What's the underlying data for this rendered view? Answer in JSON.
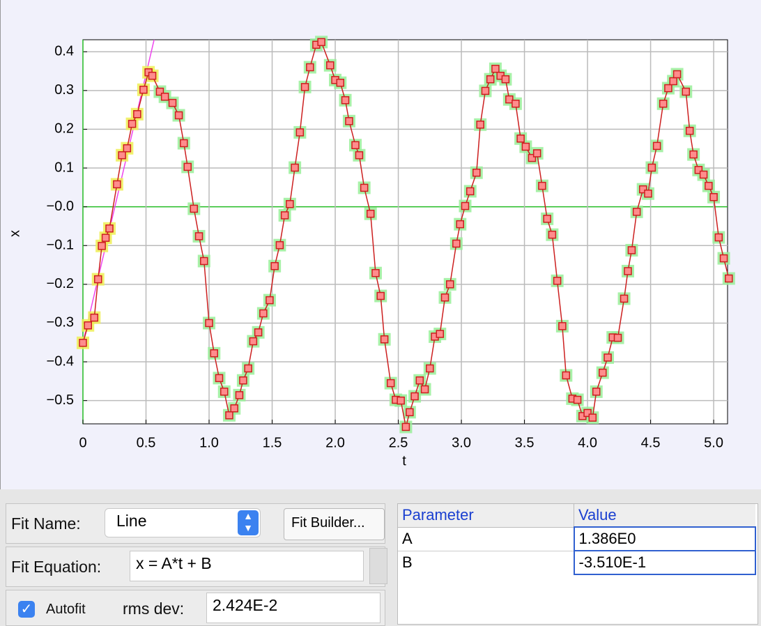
{
  "chart_data": {
    "type": "line",
    "x_label": "t",
    "y_label": "x",
    "x": [
      0,
      0.04,
      0.09,
      0.12,
      0.15,
      0.18,
      0.21,
      0.27,
      0.31,
      0.35,
      0.39,
      0.43,
      0.48,
      0.52,
      0.55,
      0.61,
      0.65,
      0.71,
      0.76,
      0.8,
      0.83,
      0.88,
      0.92,
      0.96,
      1.0,
      1.04,
      1.08,
      1.12,
      1.16,
      1.2,
      1.24,
      1.27,
      1.31,
      1.35,
      1.39,
      1.43,
      1.48,
      1.52,
      1.56,
      1.6,
      1.64,
      1.68,
      1.72,
      1.76,
      1.8,
      1.85,
      1.89,
      1.96,
      2.0,
      2.04,
      2.08,
      2.11,
      2.16,
      2.19,
      2.23,
      2.28,
      2.32,
      2.36,
      2.39,
      2.44,
      2.48,
      2.52,
      2.56,
      2.59,
      2.63,
      2.67,
      2.71,
      2.75,
      2.79,
      2.83,
      2.87,
      2.91,
      2.96,
      2.99,
      3.03,
      3.07,
      3.12,
      3.15,
      3.19,
      3.23,
      3.27,
      3.31,
      3.35,
      3.38,
      3.43,
      3.47,
      3.51,
      3.56,
      3.6,
      3.64,
      3.68,
      3.72,
      3.76,
      3.8,
      3.83,
      3.88,
      3.92,
      3.96,
      4.0,
      4.04,
      4.07,
      4.12,
      4.16,
      4.2,
      4.24,
      4.29,
      4.32,
      4.35,
      4.39,
      4.44,
      4.48,
      4.51,
      4.55,
      4.6,
      4.64,
      4.68,
      4.71,
      4.78,
      4.81,
      4.84,
      4.88,
      4.92,
      4.96,
      5.0,
      5.04,
      5.08,
      5.12
    ],
    "series": [
      {
        "color": "#cc1f1f",
        "values": [
          -0.351,
          -0.306,
          -0.286,
          -0.187,
          -0.101,
          -0.08,
          -0.056,
          0.058,
          0.133,
          0.151,
          0.214,
          0.239,
          0.302,
          0.347,
          0.338,
          0.297,
          0.284,
          0.268,
          0.236,
          0.164,
          0.103,
          -0.005,
          -0.076,
          -0.14,
          -0.3,
          -0.378,
          -0.442,
          -0.477,
          -0.538,
          -0.52,
          -0.486,
          -0.448,
          -0.417,
          -0.347,
          -0.324,
          -0.275,
          -0.241,
          -0.153,
          -0.099,
          -0.022,
          0.007,
          0.101,
          0.192,
          0.309,
          0.36,
          0.418,
          0.425,
          0.365,
          0.327,
          0.32,
          0.275,
          0.221,
          0.159,
          0.133,
          0.049,
          -0.018,
          -0.171,
          -0.23,
          -0.342,
          -0.455,
          -0.498,
          -0.5,
          -0.568,
          -0.53,
          -0.489,
          -0.448,
          -0.471,
          -0.417,
          -0.335,
          -0.328,
          -0.234,
          -0.2,
          -0.095,
          -0.045,
          0.002,
          0.04,
          0.088,
          0.212,
          0.299,
          0.329,
          0.356,
          0.338,
          0.329,
          0.277,
          0.266,
          0.176,
          0.155,
          0.126,
          0.138,
          0.054,
          -0.031,
          -0.072,
          -0.191,
          -0.308,
          -0.435,
          -0.495,
          -0.498,
          -0.54,
          -0.532,
          -0.544,
          -0.477,
          -0.428,
          -0.389,
          -0.337,
          -0.338,
          -0.237,
          -0.166,
          -0.112,
          -0.013,
          0.045,
          0.034,
          0.101,
          0.157,
          0.266,
          0.306,
          0.324,
          0.342,
          0.297,
          0.196,
          0.135,
          0.095,
          0.083,
          0.054,
          0.025,
          -0.079,
          -0.133,
          -0.185
        ]
      }
    ],
    "xlim": [
      0,
      5.11
    ],
    "ylim": [
      -0.56,
      0.431
    ],
    "xticks": [
      0,
      0.5,
      {
        "value": 1,
        "label": "1.0"
      },
      1.5,
      {
        "value": 2,
        "label": "2.0"
      },
      2.5,
      {
        "value": 3,
        "label": "3.0"
      },
      3.5,
      {
        "value": 4,
        "label": "4.0"
      },
      4.5,
      {
        "value": 5,
        "label": "5.0"
      }
    ],
    "yticks": [
      0.4,
      0.3,
      0.2,
      0.1,
      {
        "value": 0,
        "label": "−0.0"
      },
      {
        "value": -0.1,
        "label": "−0.1"
      },
      {
        "value": -0.2,
        "label": "−0.2"
      },
      {
        "value": -0.3,
        "label": "−0.3"
      },
      {
        "value": -0.4,
        "label": "−0.4"
      },
      {
        "value": -0.5,
        "label": "−0.5"
      }
    ],
    "grid": true,
    "zero_line_color": "#22bb22",
    "halo_color": "#99ee99",
    "selected_color": "#eeee55",
    "selected_count": 15,
    "fit_color": "#ee44ee"
  },
  "fit_panel": {
    "fit_name_label": "Fit Name:",
    "fit_name": "Line",
    "fit_builder": "Fit Builder...",
    "fit_equation_label": "Fit Equation:",
    "fit_equation": "x = A*t + B",
    "autofit": "Autofit",
    "autofit_checked": true,
    "rms_dev_label": "rms dev:",
    "rms_dev": "2.424E-2"
  },
  "parameters": {
    "headers": [
      "Parameter",
      "Value"
    ],
    "rows": [
      [
        "A",
        "1.386E0"
      ],
      [
        "B",
        "-3.510E-1"
      ]
    ]
  }
}
